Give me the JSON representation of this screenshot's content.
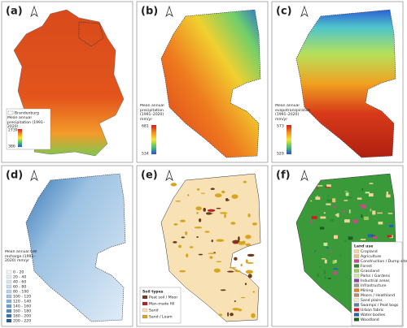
{
  "panels": [
    {
      "label": "(a)",
      "region": "Brandenburg",
      "legend_title": "Mean annual precipitation (1991–2020)",
      "max": "2739",
      "min": "386"
    },
    {
      "label": "(b)",
      "legend_title": "Mean annual precipitation (1991–2020) mm/yr",
      "max": "681",
      "min": "534"
    },
    {
      "label": "(c)",
      "legend_title": "Mean annual evapotranspiration (1991–2020) mm/yr",
      "max": "573",
      "min": "529"
    },
    {
      "label": "(d)",
      "legend_title": "Mean annual GW recharge (1991–2020) mm/yr",
      "classes": [
        {
          "name": "0 - 20",
          "color": "#f2f7fc"
        },
        {
          "name": "20 - 40",
          "color": "#e5eef8"
        },
        {
          "name": "40 - 60",
          "color": "#d8e6f4"
        },
        {
          "name": "60 - 80",
          "color": "#c9ddef"
        },
        {
          "name": "80 - 100",
          "color": "#b6d2ea"
        },
        {
          "name": "100 - 120",
          "color": "#9fc4e3"
        },
        {
          "name": "120 - 140",
          "color": "#85b3da"
        },
        {
          "name": "140 - 160",
          "color": "#69a0d0"
        },
        {
          "name": "160 - 180",
          "color": "#4e8bc4"
        },
        {
          "name": "180 - 200",
          "color": "#3574b3"
        },
        {
          "name": "200 - 220",
          "color": "#1f5c9c"
        }
      ]
    },
    {
      "label": "(e)",
      "legend_title": "Soil types",
      "classes": [
        {
          "name": "Peat soil / Moor",
          "color": "#6b3b1a"
        },
        {
          "name": "Man-made fill",
          "color": "#b0202a"
        },
        {
          "name": "Sand",
          "color": "#f7e1b5"
        },
        {
          "name": "Sand / Loam",
          "color": "#d9a520"
        }
      ]
    },
    {
      "label": "(f)",
      "legend_title": "Land use",
      "classes": [
        {
          "name": "Cropland",
          "color": "#f5d39a"
        },
        {
          "name": "Agriculture",
          "color": "#e8c27a"
        },
        {
          "name": "Construction / Dump sites",
          "color": "#c94a8a"
        },
        {
          "name": "Forest",
          "color": "#2f8a2f"
        },
        {
          "name": "Grassland",
          "color": "#9ccc5a"
        },
        {
          "name": "Parks / Gardens",
          "color": "#c8e6a0"
        },
        {
          "name": "Industrial areas",
          "color": "#8e44ad"
        },
        {
          "name": "Infrastructure",
          "color": "#999999"
        },
        {
          "name": "Mining",
          "color": "#e67e22"
        },
        {
          "name": "Moors / Heathland",
          "color": "#b38b6d"
        },
        {
          "name": "Sand plains",
          "color": "#f3e9c6"
        },
        {
          "name": "Swamps / Peat bogs",
          "color": "#5c7fa3"
        },
        {
          "name": "Urban fabric",
          "color": "#d7191c"
        },
        {
          "name": "Water bodies",
          "color": "#2166ac"
        },
        {
          "name": "Woodland",
          "color": "#1b5e20"
        }
      ]
    }
  ]
}
